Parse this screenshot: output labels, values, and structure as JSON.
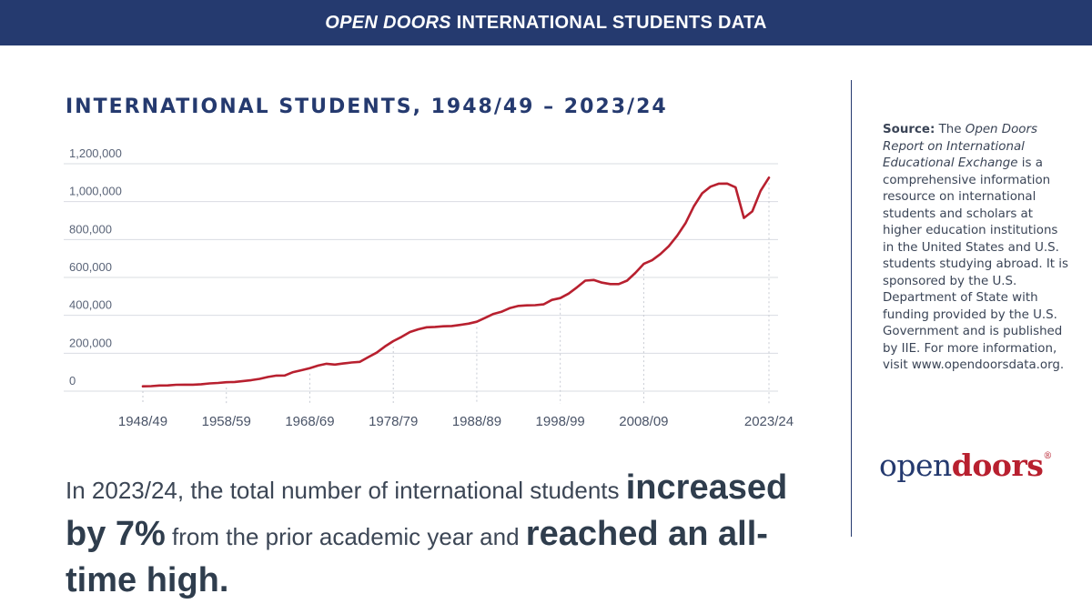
{
  "header": {
    "title_italic": "OPEN DOORS",
    "title_rest": " INTERNATIONAL STUDENTS DATA"
  },
  "chart_data": {
    "type": "line",
    "title": "INTERNATIONAL STUDENTS, 1948/49 – 2023/24",
    "xlabel": "",
    "ylabel": "",
    "ylim": [
      0,
      1200000
    ],
    "y_ticks": [
      0,
      200000,
      400000,
      600000,
      800000,
      1000000,
      1200000
    ],
    "y_tick_labels": [
      "0",
      "200,000",
      "400,000",
      "600,000",
      "800,000",
      "1,000,000",
      "1,200,000"
    ],
    "x_tick_labels": [
      "1948/49",
      "1958/59",
      "1968/69",
      "1978/79",
      "1988/89",
      "1998/99",
      "2008/09",
      "2023/24"
    ],
    "grid": true,
    "line_color": "#b8202f",
    "series": [
      {
        "x": [
          "1948/49",
          "1949/50",
          "1950/51",
          "1951/52",
          "1952/53",
          "1953/54",
          "1954/55",
          "1955/56",
          "1956/57",
          "1957/58",
          "1958/59",
          "1959/60",
          "1960/61",
          "1961/62",
          "1962/63",
          "1963/64",
          "1964/65",
          "1965/66",
          "1966/67",
          "1967/68",
          "1968/69",
          "1969/70",
          "1970/71",
          "1971/72",
          "1972/73",
          "1973/74",
          "1974/75",
          "1975/76",
          "1976/77",
          "1977/78",
          "1978/79",
          "1979/80",
          "1980/81",
          "1981/82",
          "1982/83",
          "1983/84",
          "1984/85",
          "1985/86",
          "1986/87",
          "1987/88",
          "1988/89",
          "1989/90",
          "1990/91",
          "1991/92",
          "1992/93",
          "1993/94",
          "1994/95",
          "1995/96",
          "1996/97",
          "1997/98",
          "1998/99",
          "1999/00",
          "2000/01",
          "2001/02",
          "2002/03",
          "2003/04",
          "2004/05",
          "2005/06",
          "2006/07",
          "2007/08",
          "2008/09",
          "2009/10",
          "2010/11",
          "2011/12",
          "2012/13",
          "2013/14",
          "2014/15",
          "2015/16",
          "2016/17",
          "2017/18",
          "2018/19",
          "2019/20",
          "2020/21",
          "2021/22",
          "2022/23",
          "2023/24"
        ],
        "values": [
          25464,
          26433,
          29813,
          30462,
          33675,
          34232,
          34232,
          36494,
          40666,
          43391,
          47245,
          48486,
          53107,
          58086,
          64705,
          74814,
          82045,
          82709,
          100262,
          110315,
          121362,
          134959,
          144708,
          140126,
          146097,
          151066,
          154580,
          179344,
          203068,
          235509,
          263938,
          286343,
          311882,
          326299,
          336985,
          338894,
          342113,
          343777,
          349609,
          356187,
          366354,
          386851,
          407529,
          419585,
          438618,
          449749,
          452635,
          453787,
          457984,
          481280,
          490933,
          514723,
          547867,
          582996,
          586323,
          572509,
          565039,
          564766,
          582984,
          623805,
          671616,
          690923,
          723277,
          764495,
          819644,
          886052,
          974926,
          1043839,
          1078822,
          1094792,
          1095299,
          1075496,
          914095,
          948519,
          1057188,
          1126690
        ]
      }
    ]
  },
  "headline": {
    "part1": "In 2023/24, the total number of international students ",
    "emph1": "increased by 7%",
    "part2": " from the prior academic year and ",
    "emph2": "reached an all-time high."
  },
  "source": {
    "label": "Source:",
    "text1": " The ",
    "report_name": "Open Doors Report on International Educational Exchange",
    "text2": " is a comprehensive information resource on international students and scholars at higher education institutions in the United States and U.S. students studying abroad. It is sponsored by the U.S. Department of State with funding provided by the U.S. Government and is published by IIE. For more information, visit www.opendoorsdata.org."
  },
  "logo": {
    "part1": "open",
    "part2": "doors",
    "reg": "®"
  }
}
